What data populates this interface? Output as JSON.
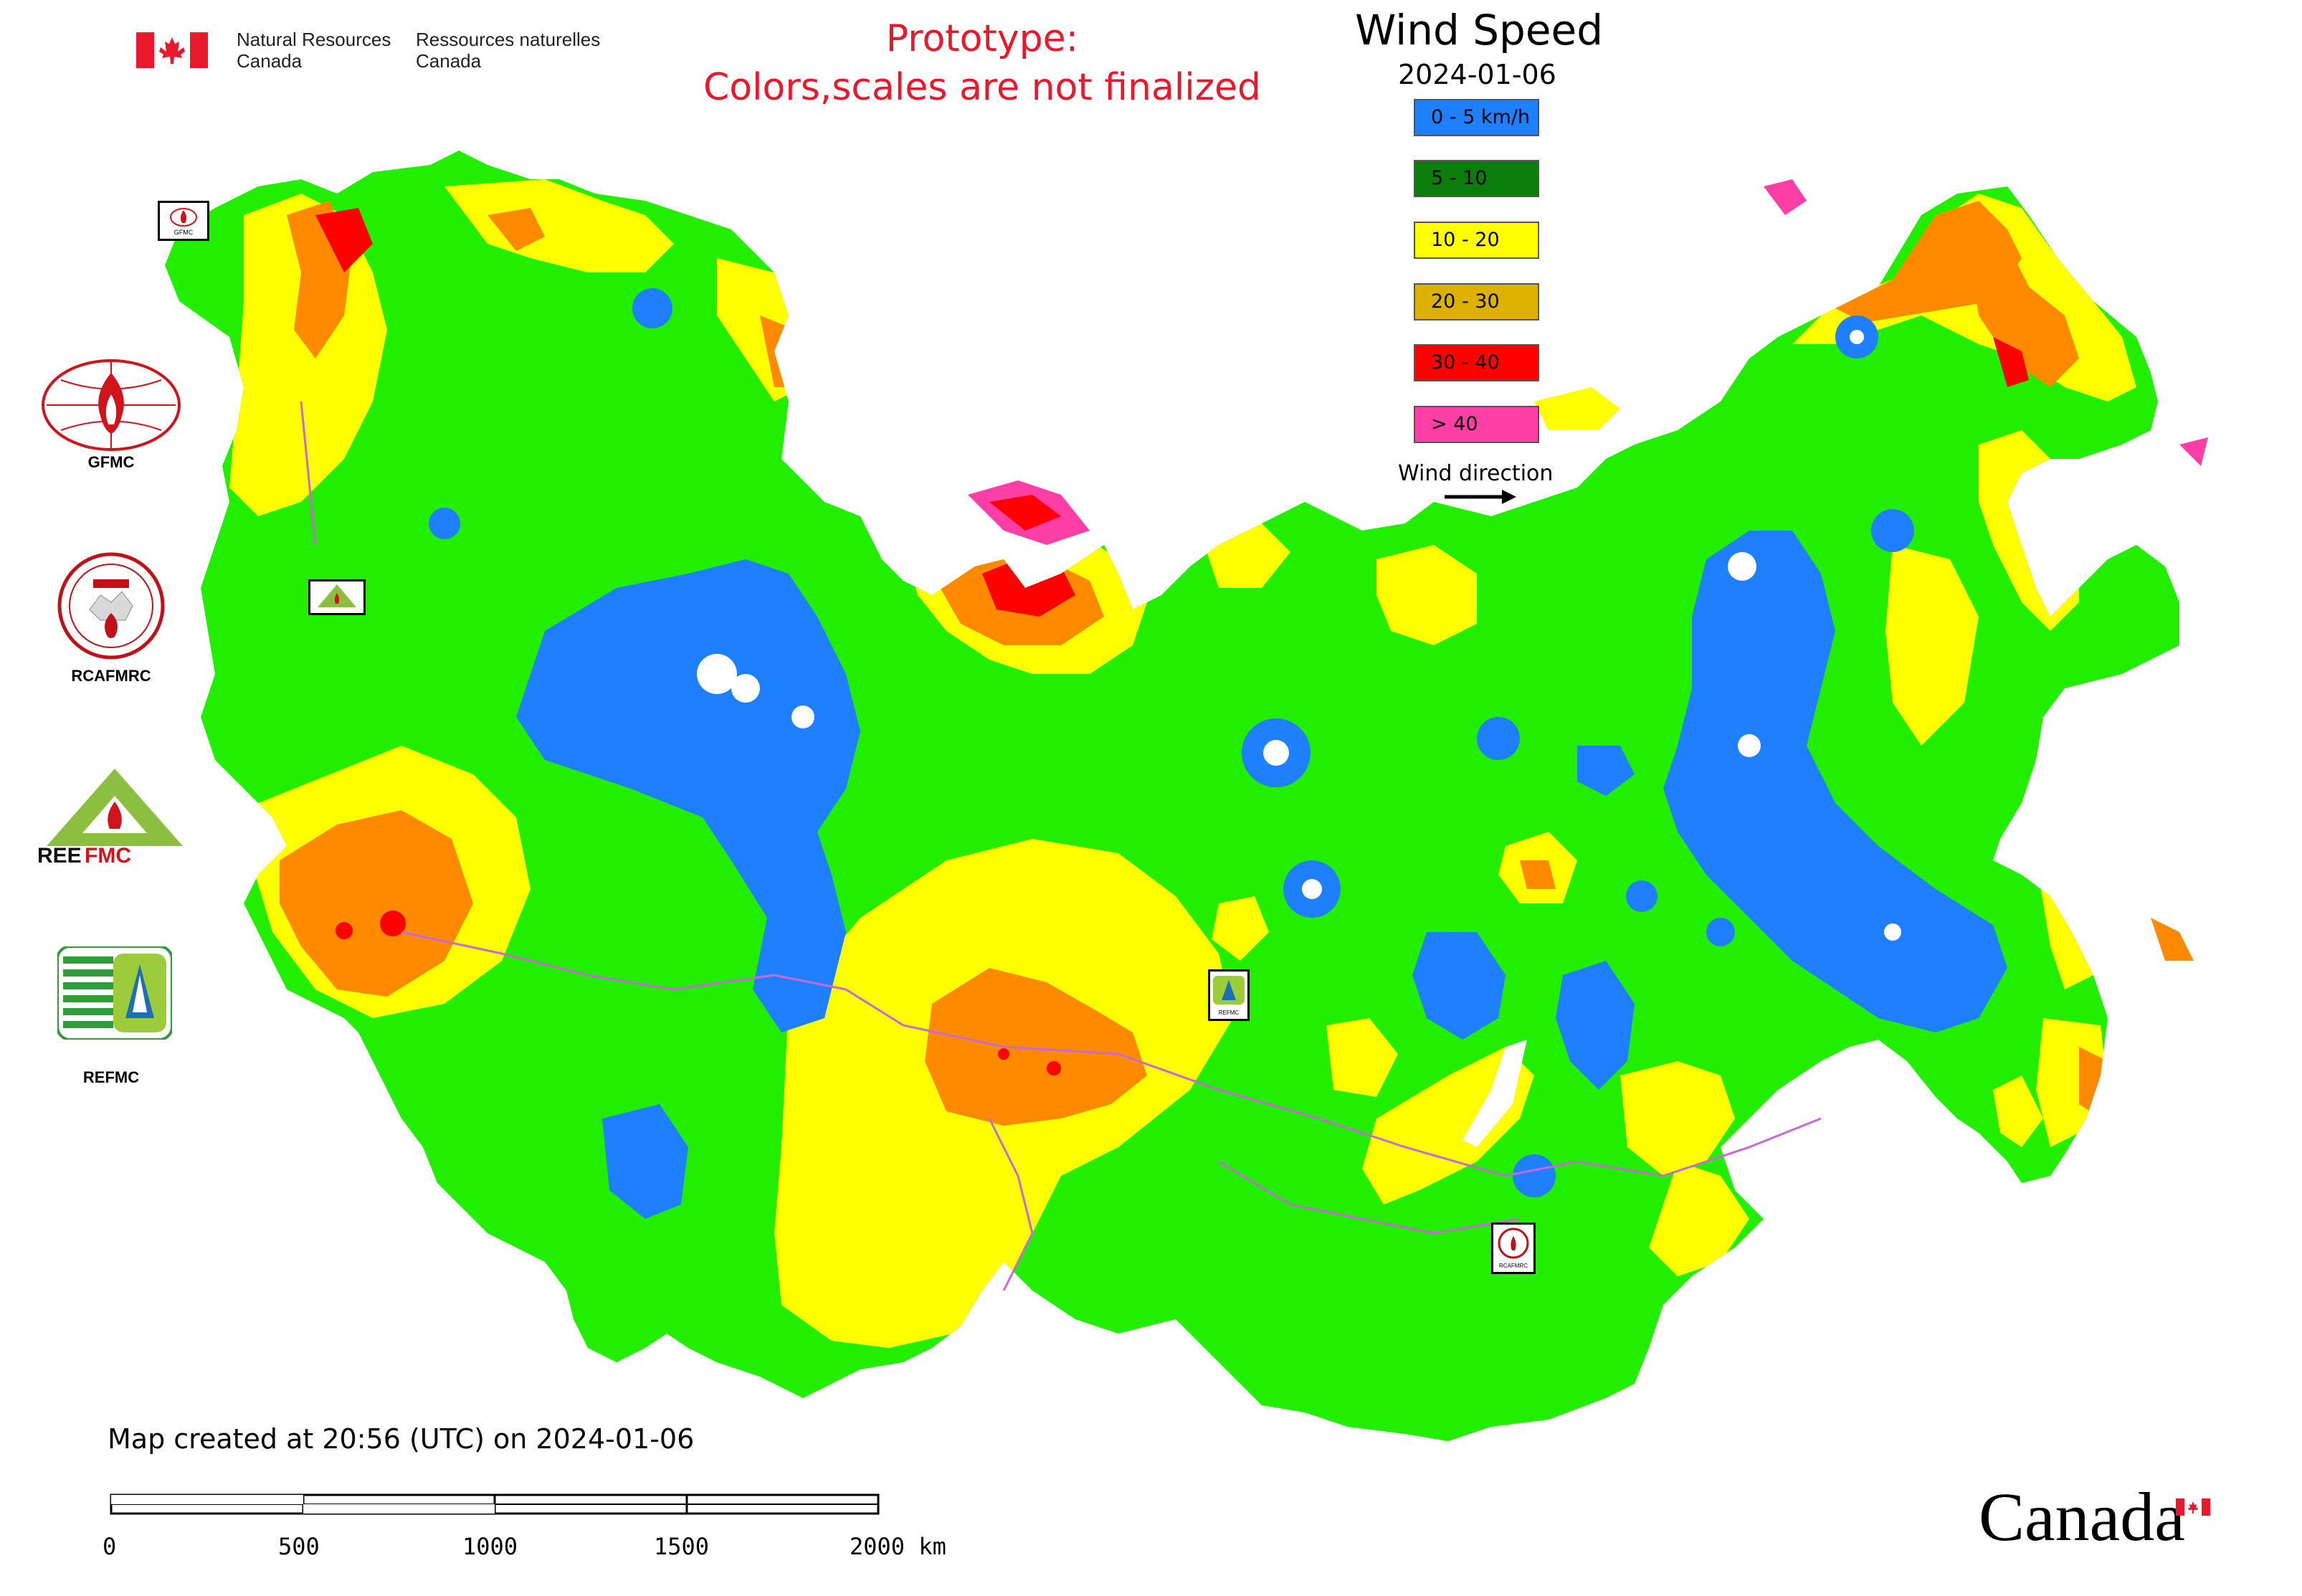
{
  "header": {
    "agency_en_line1": "Natural Resources",
    "agency_en_line2": "Canada",
    "agency_fr_line1": "Ressources naturelles",
    "agency_fr_line2": "Canada",
    "prototype_line1": "Prototype:",
    "prototype_line2": "Colors,scales are not finalized"
  },
  "legend": {
    "title": "Wind Speed",
    "date": "2024-01-06",
    "classes": [
      {
        "label": "0 - 5 km/h",
        "color": "#1e7fff"
      },
      {
        "label": "5 - 10",
        "color": "#0a7d0a"
      },
      {
        "label": "10 - 20",
        "color": "#ffff00"
      },
      {
        "label": "20 - 30",
        "color": "#ddb100"
      },
      {
        "label": "30 - 40",
        "color": "#ff0000"
      },
      {
        "label": "> 40",
        "color": "#ff3fa6"
      }
    ],
    "wind_direction_label": "Wind direction"
  },
  "organizations": [
    {
      "label": "GFMC"
    },
    {
      "label": "RCAFMRC"
    },
    {
      "label": ""
    },
    {
      "label": "REFMC"
    }
  ],
  "map_markers": {
    "gfmc_small": "GFMC",
    "rcafmrc_small": "RCAFMRC",
    "refmc_small": "REFMC"
  },
  "footer": {
    "created_text": "Map created at 20:56 (UTC) on 2024-01-06",
    "scale_labels": [
      "0",
      "500",
      "1000",
      "1500",
      "2000 km"
    ],
    "wordmark": "Canada"
  },
  "map_colors": {
    "land_base": "#22ee00",
    "calm": "#1e7fff",
    "moderate": "#ffff00",
    "strong": "#ff8a00",
    "severe": "#ff0000",
    "extreme": "#ff3fa6",
    "border": "#c86ad6"
  }
}
